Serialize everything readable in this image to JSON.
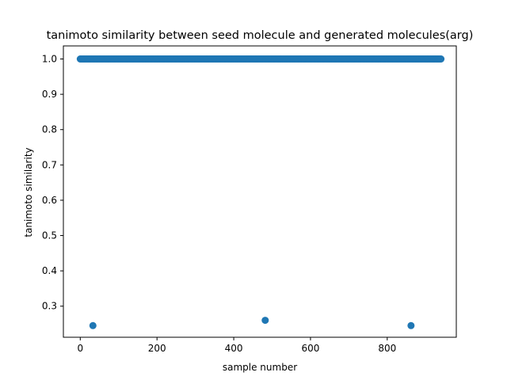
{
  "chart_data": {
    "type": "scatter",
    "title": "tanimoto similarity between seed molecule and generated molecules(arg)",
    "xlabel": "sample number",
    "ylabel": "tanimoto similarity",
    "xlim": [
      -44,
      980
    ],
    "ylim": [
      0.212,
      1.037
    ],
    "xticks": [
      0,
      200,
      400,
      600,
      800
    ],
    "yticks": [
      0.3,
      0.4,
      0.5,
      0.6,
      0.7,
      0.8,
      0.9,
      1.0
    ],
    "ytick_labels": [
      "0.3",
      "0.4",
      "0.5",
      "0.6",
      "0.7",
      "0.8",
      "0.9",
      "1.0"
    ],
    "grid": false,
    "legend": "none",
    "marker_color": "#1f77b4",
    "series": [
      {
        "dense_range": {
          "x_start": 0,
          "x_end": 940,
          "y": 1.0
        },
        "points": [
          {
            "x": 33,
            "y": 0.245
          },
          {
            "x": 482,
            "y": 0.26
          },
          {
            "x": 862,
            "y": 0.245
          }
        ]
      }
    ]
  }
}
